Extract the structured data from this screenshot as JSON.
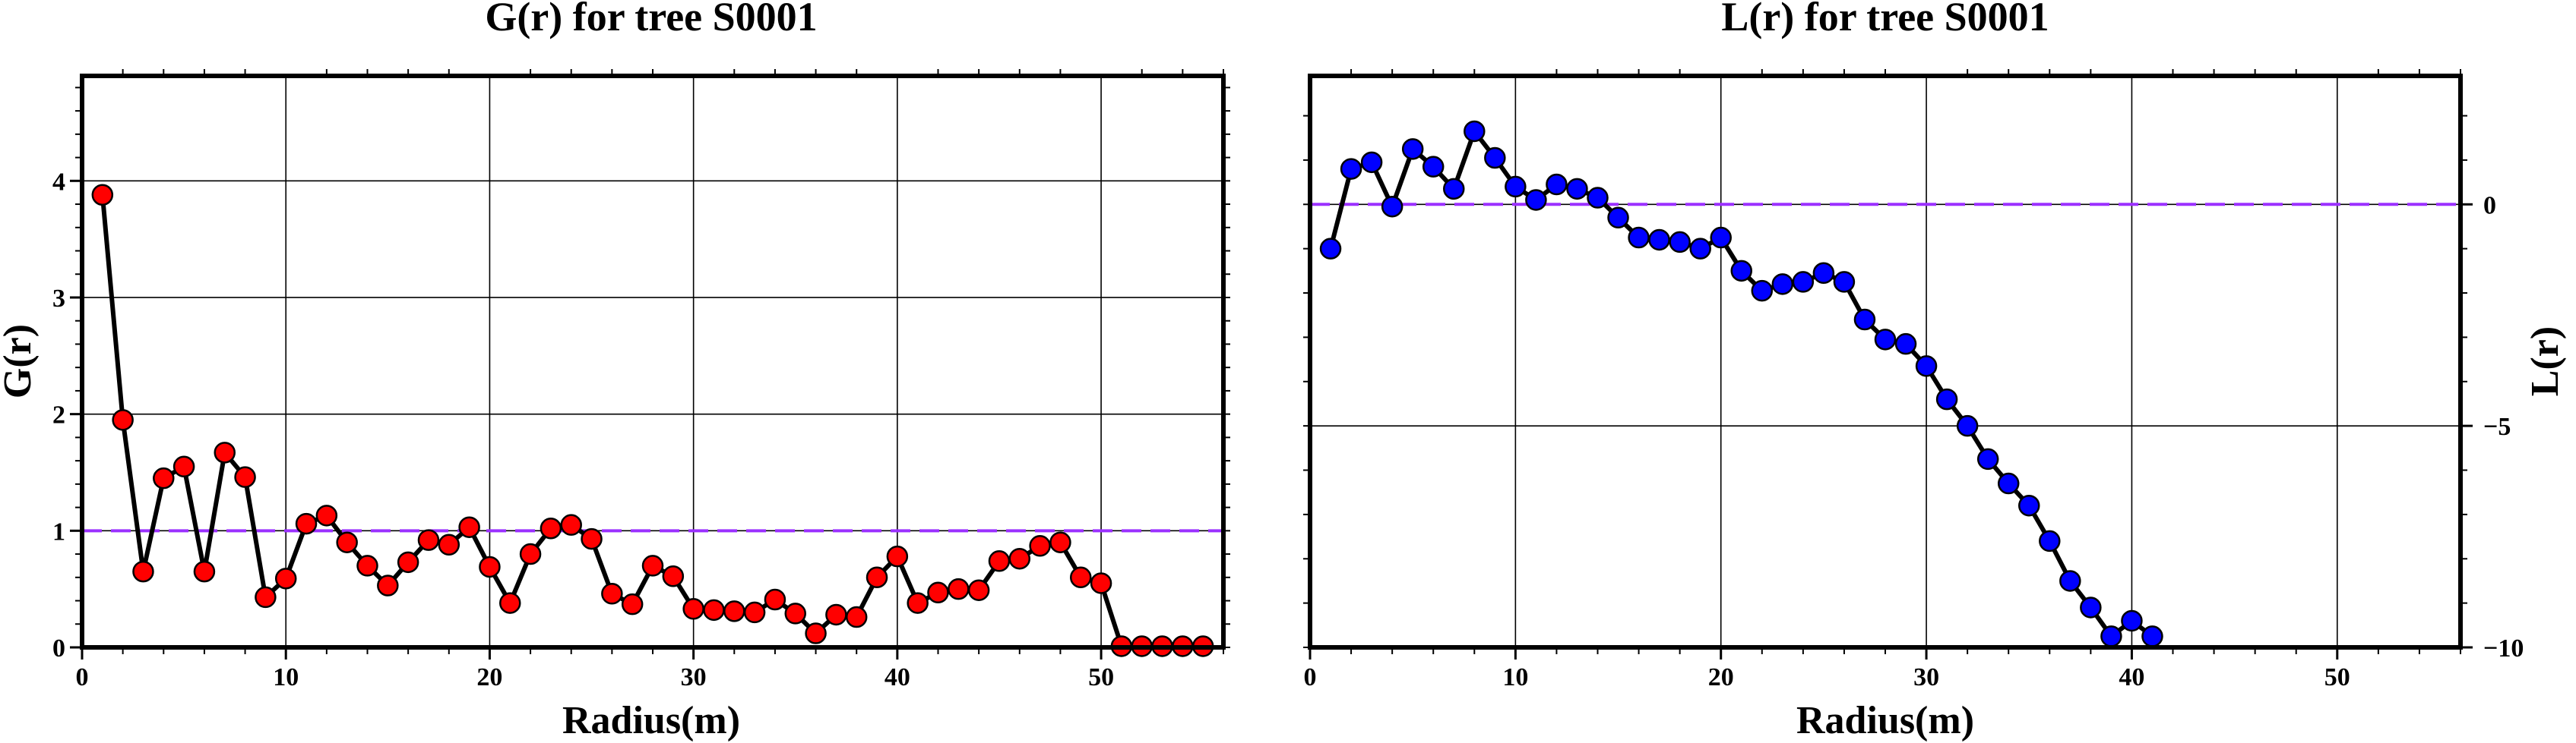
{
  "chart_data": [
    {
      "type": "line",
      "title": "G(r) for tree S0001",
      "xlabel": "Radius(m)",
      "ylabel": "G(r)",
      "xlim": [
        0,
        56
      ],
      "ylim": [
        0,
        4.9
      ],
      "x_ticks": [
        0,
        10,
        20,
        30,
        40,
        50
      ],
      "y_ticks": [
        0,
        1,
        2,
        3,
        4
      ],
      "y_axis_side": "left",
      "grid": true,
      "reference_line": {
        "y": 1,
        "color": "#9b30ff",
        "style": "dashed"
      },
      "marker_color": "#ff0000",
      "line_color": "#000000",
      "series": [
        {
          "x": [
            1,
            2,
            3,
            4,
            5,
            6,
            7,
            8,
            9,
            10,
            11,
            12,
            13,
            14,
            15,
            16,
            17,
            18,
            19,
            20,
            21,
            22,
            23,
            24,
            25,
            26,
            27,
            28,
            29,
            30,
            31,
            32,
            33,
            34,
            35,
            36,
            37,
            38,
            39,
            40,
            41,
            42,
            43,
            44,
            45,
            46,
            47,
            48,
            49,
            50,
            51,
            52,
            53,
            54,
            55
          ],
          "values": [
            3.88,
            1.95,
            0.65,
            1.45,
            1.55,
            0.65,
            1.67,
            1.46,
            0.43,
            0.59,
            1.06,
            1.13,
            0.9,
            0.7,
            0.53,
            0.73,
            0.92,
            0.88,
            1.03,
            0.69,
            0.38,
            0.8,
            1.02,
            1.05,
            0.93,
            0.46,
            0.37,
            0.7,
            0.61,
            0.33,
            0.32,
            0.31,
            0.3,
            0.41,
            0.29,
            0.12,
            0.28,
            0.26,
            0.6,
            0.78,
            0.38,
            0.47,
            0.5,
            0.49,
            0.74,
            0.76,
            0.87,
            0.9,
            0.6,
            0.55,
            0.01,
            0.01,
            0.01,
            0.01,
            0.01
          ]
        }
      ]
    },
    {
      "type": "line",
      "title": "L(r) for tree S0001",
      "xlabel": "Radius(m)",
      "ylabel": "L(r)",
      "xlim": [
        0,
        56
      ],
      "ylim": [
        -10,
        2.9
      ],
      "x_ticks": [
        0,
        10,
        20,
        30,
        40,
        50
      ],
      "y_ticks": [
        -10,
        -5,
        0
      ],
      "y_axis_side": "right",
      "grid": true,
      "reference_line": {
        "y": 0,
        "color": "#9b30ff",
        "style": "dashed"
      },
      "marker_color": "#0000ff",
      "line_color": "#000000",
      "series": [
        {
          "x": [
            1,
            2,
            3,
            4,
            5,
            6,
            7,
            8,
            9,
            10,
            11,
            12,
            13,
            14,
            15,
            16,
            17,
            18,
            19,
            20,
            21,
            22,
            23,
            24,
            25,
            26,
            27,
            28,
            29,
            30,
            31,
            32,
            33,
            34,
            35,
            36,
            37,
            38,
            39,
            40,
            41
          ],
          "values": [
            -1.0,
            0.8,
            0.95,
            -0.05,
            1.25,
            0.85,
            0.35,
            1.65,
            1.05,
            0.4,
            0.1,
            0.45,
            0.35,
            0.15,
            -0.3,
            -0.75,
            -0.8,
            -0.85,
            -1.0,
            -0.75,
            -1.5,
            -1.95,
            -1.8,
            -1.75,
            -1.55,
            -1.75,
            -2.6,
            -3.05,
            -3.15,
            -3.65,
            -4.4,
            -5.0,
            -5.75,
            -6.3,
            -6.8,
            -7.6,
            -8.5,
            -9.1,
            -9.75,
            -9.4,
            -9.75
          ]
        }
      ]
    }
  ]
}
